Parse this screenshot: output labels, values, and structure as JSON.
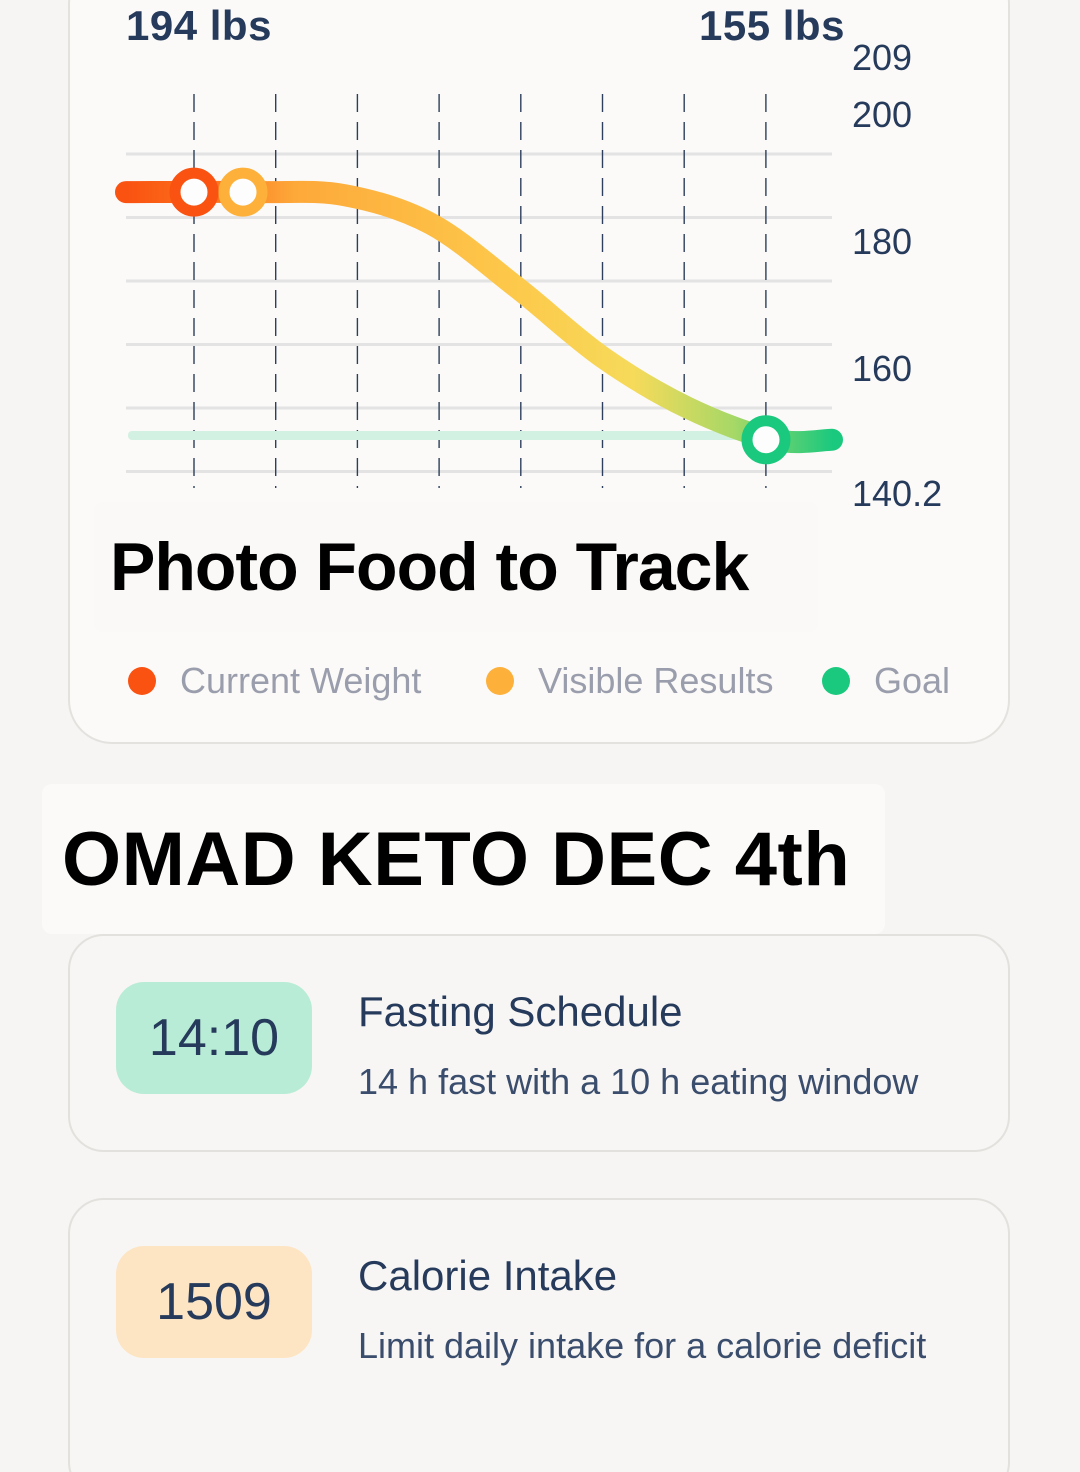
{
  "chart": {
    "start_label": "194 lbs",
    "end_label": "155 lbs",
    "legend": [
      {
        "label": "Current Weight",
        "color": "#fa5211"
      },
      {
        "label": "Visible Results",
        "color": "#fdb03a"
      },
      {
        "label": "Goal",
        "color": "#1bc97e"
      }
    ],
    "overlay_text": "Photo Food to Track"
  },
  "chart_data": {
    "type": "line",
    "y_ticks": [
      "209",
      "200",
      "180",
      "160",
      "140.2"
    ],
    "ylim": [
      140.2,
      209
    ],
    "series": [
      {
        "points": [
          [
            0,
            194
          ],
          [
            1,
            194
          ],
          [
            2,
            193.5
          ],
          [
            3,
            189
          ],
          [
            4,
            179
          ],
          [
            5,
            168
          ],
          [
            6,
            160
          ],
          [
            7,
            155
          ],
          [
            8,
            155
          ]
        ]
      }
    ],
    "markers": [
      {
        "label": "Current Weight",
        "x": 0.8,
        "y": 194,
        "color": "#fa5211"
      },
      {
        "label": "Visible Results",
        "x": 1.4,
        "y": 194,
        "color": "#fdb03a"
      },
      {
        "label": "Goal",
        "x": 7.8,
        "y": 155,
        "color": "#1bc97e"
      }
    ],
    "goal_line": 155,
    "grid": true
  },
  "caption": "OMAD KETO DEC 4th",
  "cards": [
    {
      "badge": "14:10",
      "badge_color": "#b9ecd6",
      "title": "Fasting Schedule",
      "description": "14 h fast with a 10 h eating window"
    },
    {
      "badge": "1509",
      "badge_color": "#fde5c4",
      "title": "Calorie Intake",
      "description": "Limit daily intake for a calorie deficit"
    }
  ]
}
